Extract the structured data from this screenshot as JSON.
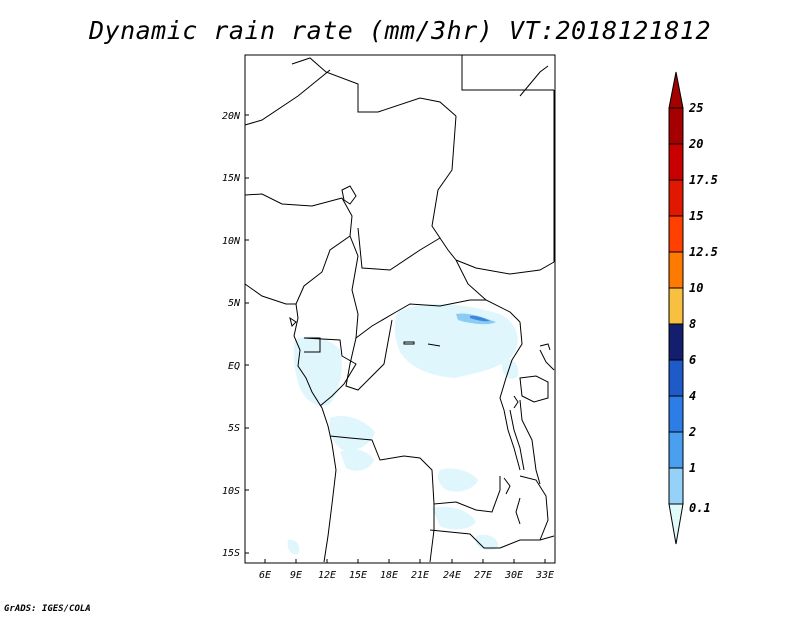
{
  "title": "Dynamic rain rate (mm/3hr) VT:2018121812",
  "footer": "GrADS: IGES/COLA",
  "map": {
    "lat_ticks": [
      "20N",
      "15N",
      "10N",
      "5N",
      "EQ",
      "5S",
      "10S",
      "15S"
    ],
    "lon_ticks": [
      "6E",
      "9E",
      "12E",
      "15E",
      "18E",
      "21E",
      "24E",
      "27E",
      "30E",
      "33E"
    ]
  },
  "colorbar": {
    "labels": [
      "25",
      "20",
      "17.5",
      "15",
      "12.5",
      "10",
      "8",
      "6",
      "4",
      "2",
      "1",
      "0.1"
    ],
    "colors": [
      "#a50000",
      "#c80000",
      "#e01800",
      "#ff4000",
      "#ff7a00",
      "#f8c040",
      "#141e6e",
      "#1e5ac8",
      "#2d7de6",
      "#4aa0ee",
      "#96d2f8",
      "#e1fafa"
    ]
  },
  "colors": {
    "light_rain": "#dff6fc",
    "moderate_rain": "#8ccbf2",
    "heavy_rain": "#3f86de",
    "border": "#000000"
  }
}
